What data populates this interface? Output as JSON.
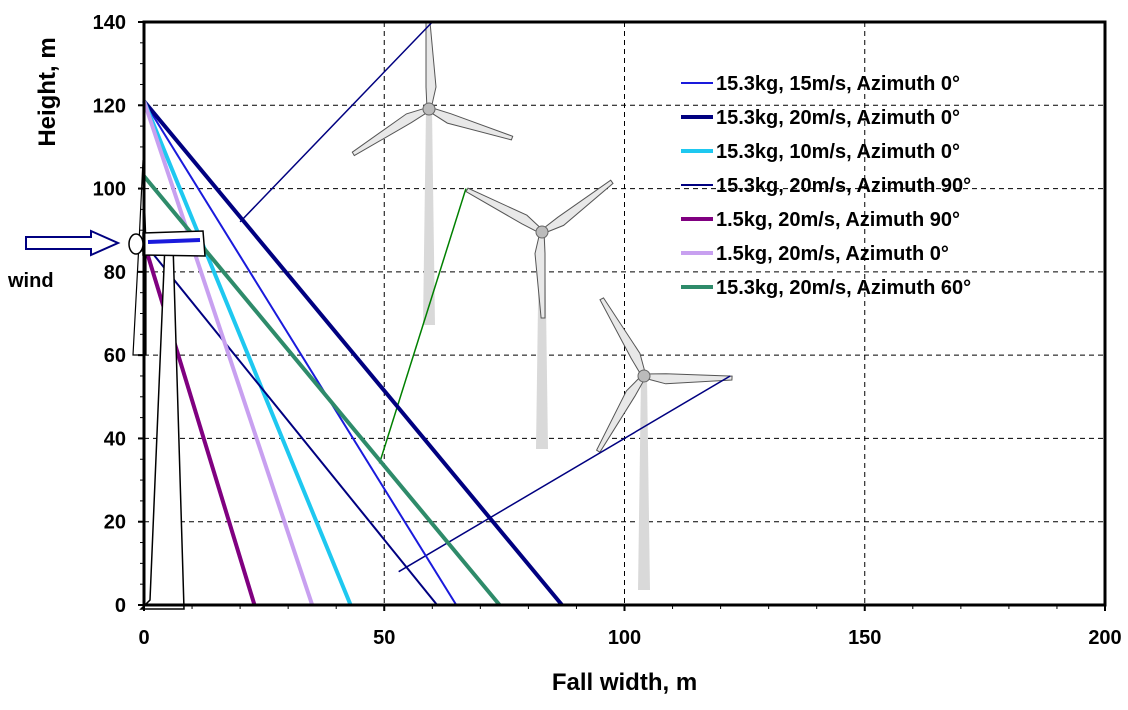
{
  "chart_data": {
    "type": "line",
    "title": "",
    "xlabel": "Fall width, m",
    "ylabel": "Height, m",
    "xlim": [
      0,
      200
    ],
    "ylim": [
      0,
      140
    ],
    "xticks": [
      0,
      50,
      100,
      150,
      200
    ],
    "yticks": [
      0,
      20,
      40,
      60,
      80,
      100,
      120,
      140
    ],
    "grid": true,
    "legend_position": "top-right",
    "annotation": "wind",
    "series": [
      {
        "name": "15.3kg, 15m/s, Azimuth 0°",
        "color": "#1a1adc",
        "weight": "thin",
        "x": [
          0,
          65
        ],
        "y": [
          121,
          0
        ]
      },
      {
        "name": "15.3kg, 20m/s, Azimuth 0°",
        "color": "#000080",
        "weight": "thick",
        "x": [
          0,
          87
        ],
        "y": [
          121,
          0
        ]
      },
      {
        "name": "15.3kg, 10m/s, Azimuth 0°",
        "color": "#1ec8f0",
        "weight": "thick",
        "x": [
          0,
          43
        ],
        "y": [
          121,
          0
        ]
      },
      {
        "name": "15.3kg, 20m/s, Azimuth 90°",
        "color": "#000080",
        "weight": "thin",
        "x": [
          0,
          61
        ],
        "y": [
          87,
          0
        ]
      },
      {
        "name": "1.5kg, 20m/s, Azimuth 90°",
        "color": "#800080",
        "weight": "thick",
        "x": [
          0,
          23
        ],
        "y": [
          87,
          0
        ]
      },
      {
        "name": "1.5kg, 20m/s, Azimuth 0°",
        "color": "#c8a0f0",
        "weight": "thick",
        "x": [
          0,
          35
        ],
        "y": [
          121,
          0
        ]
      },
      {
        "name": "15.3kg, 20m/s, Azimuth 60°",
        "color": "#2e8b6a",
        "weight": "thick",
        "x": [
          0,
          74
        ],
        "y": [
          103,
          0
        ]
      }
    ],
    "callouts": [
      {
        "color": "#000080",
        "x": [
          20,
          60
        ],
        "y": [
          92,
          140
        ]
      },
      {
        "color": "#008000",
        "x": [
          49,
          67
        ],
        "y": [
          34,
          100
        ]
      },
      {
        "color": "#000080",
        "x": [
          53,
          122
        ],
        "y": [
          8,
          55
        ]
      }
    ]
  }
}
